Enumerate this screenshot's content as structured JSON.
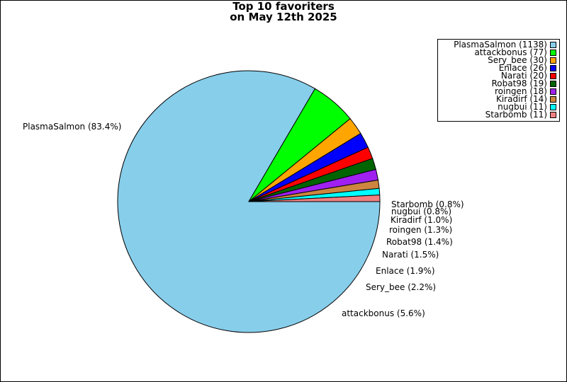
{
  "chart_data": {
    "type": "pie",
    "title": "Top 10 favoriters",
    "subtitle": "on May 12th 2025",
    "legend_position": "top-right",
    "slices": [
      {
        "name": "PlasmaSalmon",
        "value": 1138,
        "percent_label": "PlasmaSalmon (83.4%)",
        "legend_label": "PlasmaSalmon (1138)",
        "color": "#87CEEB"
      },
      {
        "name": "attackbonus",
        "value": 77,
        "percent_label": "attackbonus (5.6%)",
        "legend_label": "attackbonus (77)",
        "color": "#00FF00"
      },
      {
        "name": "Sery_bee",
        "value": 30,
        "percent_label": "Sery_bee (2.2%)",
        "legend_label": "Sery_bee (30)",
        "color": "#FFA500"
      },
      {
        "name": "Enlace",
        "value": 26,
        "percent_label": "Enlace (1.9%)",
        "legend_label": "Enlace (26)",
        "color": "#0000FF"
      },
      {
        "name": "Narati",
        "value": 20,
        "percent_label": "Narati (1.5%)",
        "legend_label": "Narati (20)",
        "color": "#FF0000"
      },
      {
        "name": "Robat98",
        "value": 19,
        "percent_label": "Robat98 (1.4%)",
        "legend_label": "Robat98 (19)",
        "color": "#006400"
      },
      {
        "name": "roingen",
        "value": 18,
        "percent_label": "roingen (1.3%)",
        "legend_label": "roingen (18)",
        "color": "#A020F0"
      },
      {
        "name": "Kiradirf",
        "value": 14,
        "percent_label": "Kiradirf (1.0%)",
        "legend_label": "Kiradirf (14)",
        "color": "#CD853F"
      },
      {
        "name": "nugbui",
        "value": 11,
        "percent_label": "nugbui (0.8%)",
        "legend_label": "nugbui (11)",
        "color": "#00FFFF"
      },
      {
        "name": "Starbomb",
        "value": 11,
        "percent_label": "Starbomb (0.8%)",
        "legend_label": "Starbomb (11)",
        "color": "#F08080"
      }
    ]
  }
}
